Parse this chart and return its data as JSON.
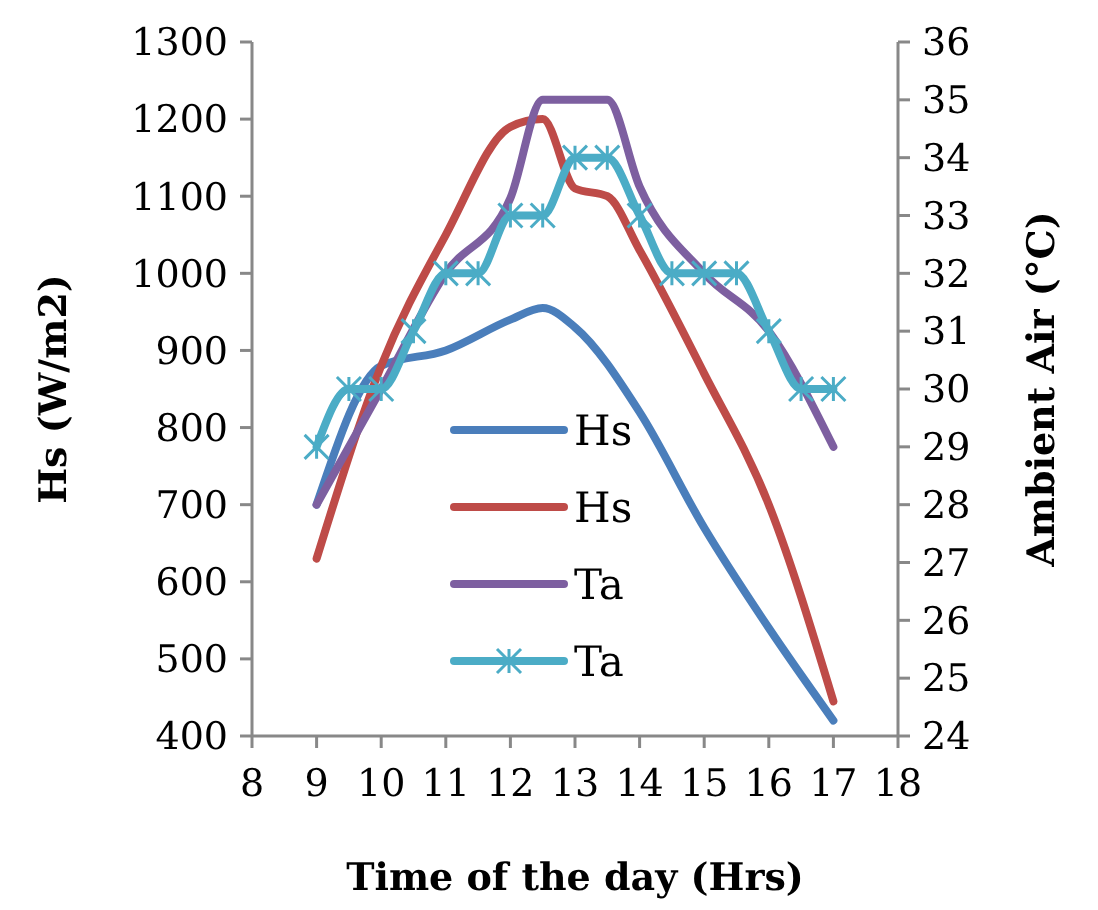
{
  "chart_data": {
    "type": "line",
    "xlabel": "Time of the day (Hrs)",
    "ylabel": "Hs (W/m2)",
    "y2label": "Ambient Air (°C)",
    "xlim": [
      8,
      18
    ],
    "xticks": [
      8,
      9,
      10,
      11,
      12,
      13,
      14,
      15,
      16,
      17,
      18
    ],
    "ylim": [
      400,
      1300
    ],
    "yticks": [
      400,
      500,
      600,
      700,
      800,
      900,
      1000,
      1100,
      1200,
      1300
    ],
    "y2lim": [
      24,
      36
    ],
    "y2ticks": [
      24,
      25,
      26,
      27,
      28,
      29,
      30,
      31,
      32,
      33,
      34,
      35,
      36
    ],
    "legend": "bottom",
    "grid": false,
    "series": [
      {
        "name": "Hs",
        "color": "#4a7ebb",
        "marker": "none",
        "x": [
          9,
          10,
          11,
          12,
          12.5,
          13,
          14,
          15,
          16,
          17
        ],
        "values": [
          700,
          880,
          900,
          940,
          955,
          930,
          820,
          670,
          540,
          420
        ]
      },
      {
        "name": "Hs",
        "color": "#be4b48",
        "marker": "none",
        "x": [
          9,
          10,
          11,
          12,
          12.5,
          13,
          13.5,
          14,
          15,
          16,
          17
        ],
        "values": [
          630,
          880,
          1050,
          1190,
          1200,
          1110,
          1100,
          1030,
          870,
          700,
          445
        ]
      },
      {
        "name": "Ta",
        "color": "#7d5fa0",
        "axis": "y2",
        "marker": "none",
        "x": [
          9,
          10,
          11,
          12,
          12.5,
          13,
          13.5,
          14,
          15,
          16,
          17
        ],
        "values": [
          28,
          30,
          32,
          33.3,
          35,
          35,
          35,
          33.5,
          32,
          31,
          29
        ]
      },
      {
        "name": "Ta",
        "color": "#4bacc6",
        "axis": "y2",
        "marker": "cross",
        "x": [
          9,
          9.5,
          10,
          10.5,
          11,
          11.5,
          12,
          12.5,
          13,
          13.5,
          14,
          14.5,
          15,
          15.5,
          16,
          16.5,
          17
        ],
        "values": [
          29,
          30,
          30,
          31,
          32,
          32,
          33,
          33,
          34,
          34,
          33,
          32,
          32,
          32,
          31,
          30,
          30
        ]
      }
    ]
  }
}
